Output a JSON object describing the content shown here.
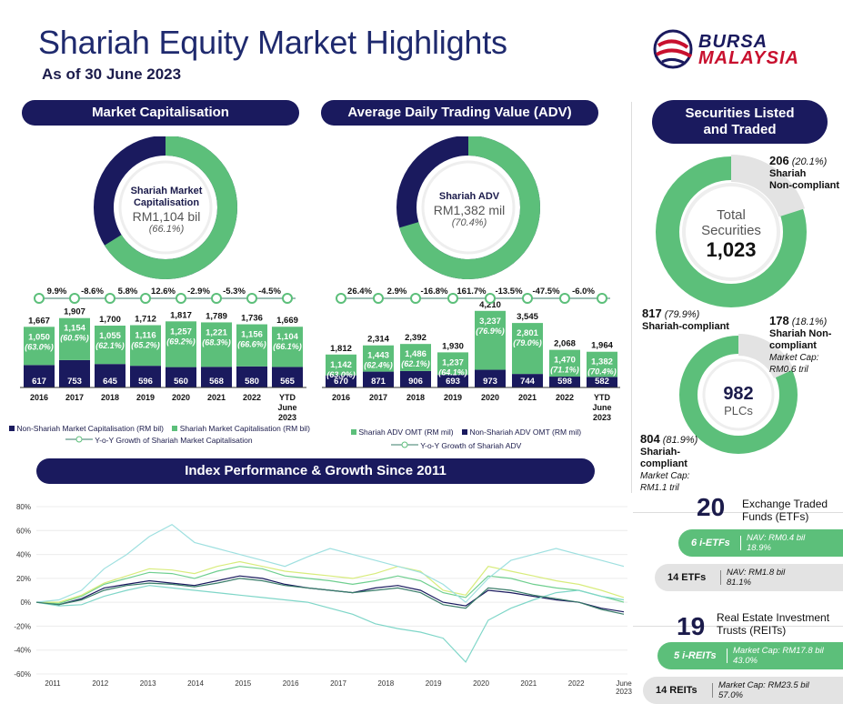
{
  "header": {
    "title": "Shariah Equity Market Highlights",
    "subtitle": "As of 30 June 2023",
    "logo_line1": "BURSA",
    "logo_line2": "MALAYSIA"
  },
  "sections": {
    "mc": "Market Capitalisation",
    "adv": "Average Daily Trading Value (ADV)",
    "sec": "Securities Listed and Traded",
    "idx": "Index Performance & Growth Since 2011"
  },
  "mc_donut": {
    "l1": "Shariah Market",
    "l2": "Capitalisation",
    "value": "RM1,104 bil",
    "pct": "(66.1%)",
    "fraction": 0.661
  },
  "adv_donut": {
    "l1": "Shariah ADV",
    "value": "RM1,382 mil",
    "pct": "(70.4%)",
    "fraction": 0.704
  },
  "securities": {
    "l1": "Total",
    "l2": "Securities",
    "value": "1,023",
    "noncomp_n": "206",
    "noncomp_pct": "(20.1%)",
    "noncomp_l1": "Shariah",
    "noncomp_l2": "Non-compliant",
    "noncomp_fraction": 0.201,
    "comp_n": "817",
    "comp_pct": "(79.9%)",
    "comp_l": "Shariah-compliant"
  },
  "plcs": {
    "value": "982",
    "label": "PLCs",
    "fraction_comp": 0.819,
    "noncomp_n": "178",
    "noncomp_pct": "(18.1%)",
    "noncomp_l1": "Shariah Non-",
    "noncomp_l2": "compliant",
    "noncomp_cap1": "Market Cap:",
    "noncomp_cap2": "RM0.6 tril",
    "comp_n": "804",
    "comp_pct": "(81.9%)",
    "comp_l1": "Shariah-",
    "comp_l2": "compliant",
    "comp_cap1": "Market Cap:",
    "comp_cap2": "RM1.1 tril"
  },
  "etf": {
    "n": "20",
    "l1": "Exchange Traded",
    "l2": "Funds (ETFs)",
    "i_label": "6 i-ETFs",
    "i_nav1": "NAV: RM0.4 bil",
    "i_nav2": "18.9%",
    "c_label": "14 ETFs",
    "c_nav1": "NAV: RM1.8 bil",
    "c_nav2": "81.1%"
  },
  "reit": {
    "n": "19",
    "l1": "Real Estate Investment",
    "l2": "Trusts (REITs)",
    "i_label": "5 i-REITs",
    "i_cap1": "Market Cap: RM17.8 bil",
    "i_cap2": "43.0%",
    "c_label": "14 REITs",
    "c_cap1": "Market Cap: RM23.5 bil",
    "c_cap2": "57.0%"
  },
  "colors": {
    "navy": "#1a1a5e",
    "green": "#5cbf7a",
    "lightgreen": "#b9e4c4",
    "grey": "#e3e3e3"
  },
  "chart_data": [
    {
      "type": "bar",
      "stacked": true,
      "categories": [
        "2016",
        "2017",
        "2018",
        "2019",
        "2020",
        "2021",
        "2022",
        "YTD June 2023"
      ],
      "series": [
        {
          "name": "Non-Shariah Market Capitalisation (RM bil)",
          "values": [
            617,
            753,
            645,
            596,
            560,
            568,
            580,
            565
          ]
        },
        {
          "name": "Shariah Market Capitalisation (RM bil)",
          "values": [
            1050,
            1154,
            1055,
            1116,
            1257,
            1221,
            1156,
            1104
          ],
          "labels": [
            "1,050",
            "1,154",
            "1,055",
            "1,116",
            "1,257",
            "1,221",
            "1,156",
            "1,104"
          ],
          "pct_labels": [
            "(63.0%)",
            "(60.5%)",
            "(62.1%)",
            "(65.2%)",
            "(69.2%)",
            "(68.3%)",
            "(66.6%)",
            "(66.1%)"
          ]
        }
      ],
      "totals": [
        "1,667",
        "1,907",
        "1,700",
        "1,712",
        "1,817",
        "1,789",
        "1,736",
        "1,669"
      ],
      "growth": {
        "name": "Y-o-Y Growth of Shariah Market Capitalisation",
        "labels": [
          "9.9%",
          "-8.6%",
          "5.8%",
          "12.6%",
          "-2.9%",
          "-5.3%",
          "-4.5%"
        ]
      }
    },
    {
      "type": "bar",
      "stacked": true,
      "categories": [
        "2016",
        "2017",
        "2018",
        "2019",
        "2020",
        "2021",
        "2022",
        "YTD June 2023"
      ],
      "series": [
        {
          "name": "Non-Shariah ADV OMT (RM mil)",
          "values": [
            670,
            871,
            906,
            693,
            973,
            744,
            598,
            582
          ]
        },
        {
          "name": "Shariah ADV OMT (RM mil)",
          "values": [
            1142,
            1443,
            1486,
            1237,
            3237,
            2801,
            1470,
            1382
          ],
          "labels": [
            "1,142",
            "1,443",
            "1,486",
            "1,237",
            "3,237",
            "2,801",
            "1,470",
            "1,382"
          ],
          "pct_labels": [
            "(63.0%)",
            "(62.4%)",
            "(62.1%)",
            "(64.1%)",
            "(76.9%)",
            "(79.0%)",
            "(71.1%)",
            "(70.4%)"
          ]
        }
      ],
      "totals": [
        "1,812",
        "2,314",
        "2,392",
        "1,930",
        "4,210",
        "3,545",
        "2,068",
        "1,964"
      ],
      "growth": {
        "name": "Y-o-Y Growth of Shariah ADV",
        "labels": [
          "26.4%",
          "2.9%",
          "-16.8%",
          "161.7%",
          "-13.5%",
          "-47.5%",
          "-6.0%"
        ]
      }
    },
    {
      "type": "line",
      "x_labels": [
        "2011",
        "2012",
        "2013",
        "2014",
        "2015",
        "2016",
        "2017",
        "2018",
        "2019",
        "2020",
        "2021",
        "2022",
        "June 2023"
      ],
      "y_labels": [
        "80%",
        "60%",
        "40%",
        "20%",
        "0%",
        "-20%",
        "-40%",
        "-60%"
      ],
      "ylim": [
        -60,
        80
      ],
      "series": [
        {
          "color": "#1a1a5e",
          "values": [
            0,
            -2,
            3,
            12,
            15,
            18,
            16,
            14,
            18,
            22,
            20,
            15,
            12,
            10,
            8,
            12,
            14,
            10,
            0,
            -3,
            10,
            8,
            5,
            2,
            0,
            -5,
            -8
          ]
        },
        {
          "color": "#6fcf8f",
          "values": [
            0,
            -1,
            5,
            15,
            20,
            25,
            24,
            20,
            26,
            30,
            28,
            22,
            20,
            18,
            15,
            18,
            22,
            18,
            8,
            4,
            22,
            20,
            15,
            12,
            10,
            5,
            0
          ]
        },
        {
          "color": "#d8ec7c",
          "values": [
            0,
            0,
            6,
            16,
            22,
            28,
            27,
            24,
            30,
            34,
            30,
            26,
            24,
            22,
            20,
            24,
            30,
            26,
            10,
            6,
            30,
            26,
            22,
            18,
            15,
            10,
            4
          ]
        },
        {
          "color": "#9fe0e0",
          "values": [
            0,
            2,
            10,
            28,
            40,
            55,
            65,
            50,
            45,
            40,
            35,
            30,
            38,
            45,
            40,
            35,
            30,
            25,
            15,
            0,
            20,
            35,
            40,
            45,
            40,
            35,
            30
          ]
        },
        {
          "color": "#7fd6c8",
          "values": [
            0,
            -3,
            -2,
            5,
            10,
            14,
            12,
            10,
            8,
            6,
            4,
            2,
            0,
            -5,
            -10,
            -18,
            -22,
            -25,
            -30,
            -50,
            -15,
            -5,
            2,
            8,
            10,
            5,
            2
          ]
        },
        {
          "color": "#3a7d6a",
          "values": [
            0,
            -2,
            2,
            10,
            14,
            16,
            15,
            13,
            16,
            20,
            18,
            14,
            12,
            10,
            8,
            10,
            12,
            8,
            -2,
            -5,
            12,
            10,
            6,
            3,
            0,
            -6,
            -10
          ]
        }
      ]
    }
  ]
}
